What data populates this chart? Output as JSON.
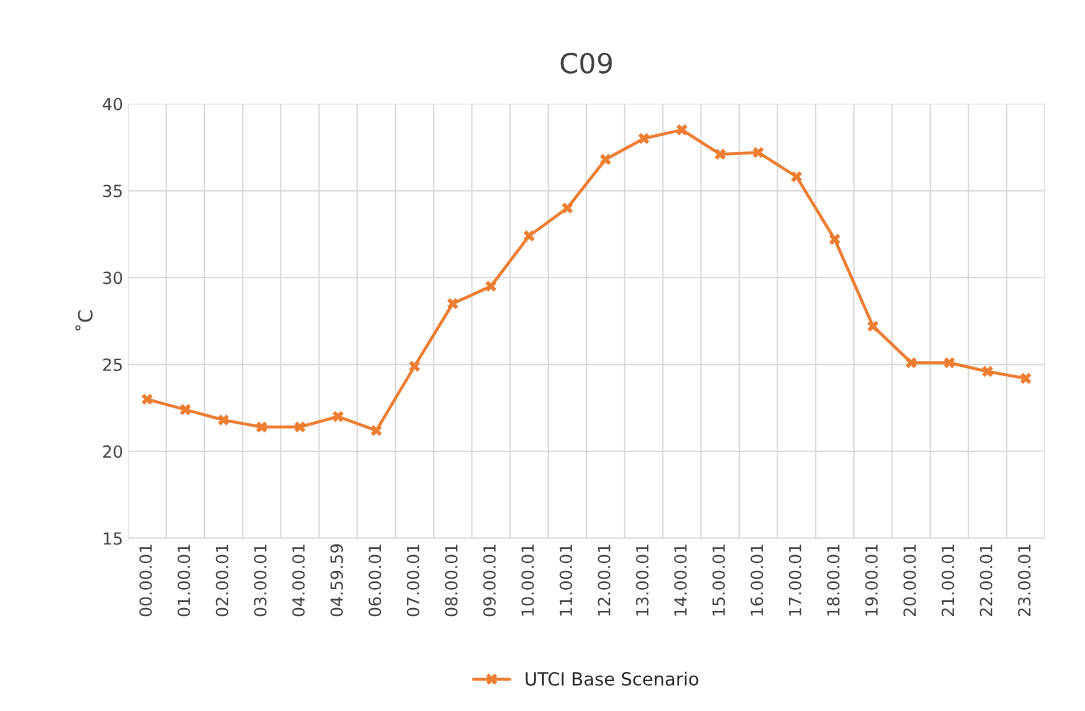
{
  "chart_data": {
    "type": "line",
    "title": "C09",
    "ylabel": "˚C",
    "categories": [
      "00.00.01",
      "01.00.01",
      "02.00.01",
      "03.00.01",
      "04.00.01",
      "04.59.59",
      "06.00.01",
      "07.00.01",
      "08.00.01",
      "09.00.01",
      "10.00.01",
      "11.00.01",
      "12.00.01",
      "13.00.01",
      "14.00.01",
      "15.00.01",
      "16.00.01",
      "17.00.01",
      "18.00.01",
      "19.00.01",
      "20.00.01",
      "21.00.01",
      "22.00.01",
      "23.00.01"
    ],
    "series": [
      {
        "name": "UTCI Base Scenario",
        "color": "#ed7d31",
        "values": [
          23.0,
          22.4,
          21.8,
          21.4,
          21.4,
          22.0,
          21.2,
          24.9,
          28.5,
          29.5,
          32.4,
          34.0,
          36.8,
          38.0,
          38.5,
          37.1,
          37.2,
          35.8,
          32.2,
          27.2,
          25.1,
          25.1,
          24.6,
          24.2
        ]
      }
    ],
    "ylim": [
      15,
      40
    ],
    "yticks": [
      15,
      20,
      25,
      30,
      35,
      40
    ],
    "grid": true,
    "legend": "bottom",
    "marker": "cross",
    "line_style": "solid"
  }
}
